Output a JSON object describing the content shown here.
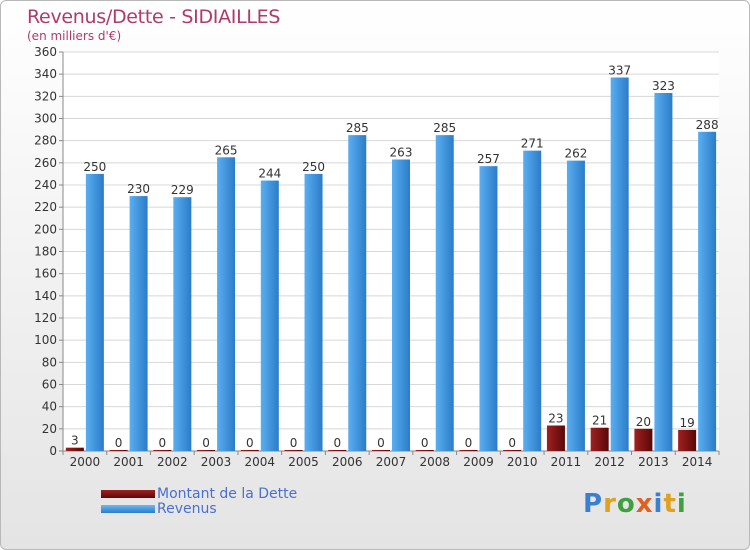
{
  "chart_data": {
    "type": "bar",
    "title": "Revenus/Dette - SIDIAILLES",
    "subtitle": "(en milliers d'€)",
    "categories": [
      "2000",
      "2001",
      "2002",
      "2003",
      "2004",
      "2005",
      "2006",
      "2007",
      "2008",
      "2009",
      "2010",
      "2011",
      "2012",
      "2013",
      "2014"
    ],
    "series": [
      {
        "name": "Montant de la Dette",
        "color": "#7a1010",
        "values": [
          3,
          0,
          0,
          0,
          0,
          0,
          0,
          0,
          0,
          0,
          0,
          23,
          21,
          20,
          19
        ]
      },
      {
        "name": "Revenus",
        "color": "#3d98e0",
        "values": [
          250,
          230,
          229,
          265,
          244,
          250,
          285,
          263,
          285,
          257,
          271,
          262,
          337,
          323,
          288
        ]
      }
    ],
    "ylim": [
      0,
      360
    ],
    "ytick_step": 20,
    "grid": true,
    "legend_position": "bottom-left"
  },
  "logo": {
    "letters": [
      {
        "char": "P",
        "color": "#3a7fd0"
      },
      {
        "char": "r",
        "color": "#e0a020"
      },
      {
        "char": "o",
        "color": "#40a040"
      },
      {
        "char": "x",
        "color": "#e06020"
      },
      {
        "char": "i",
        "color": "#3a7fd0"
      },
      {
        "char": "t",
        "color": "#e0a020"
      },
      {
        "char": "i",
        "color": "#40a040"
      }
    ]
  }
}
